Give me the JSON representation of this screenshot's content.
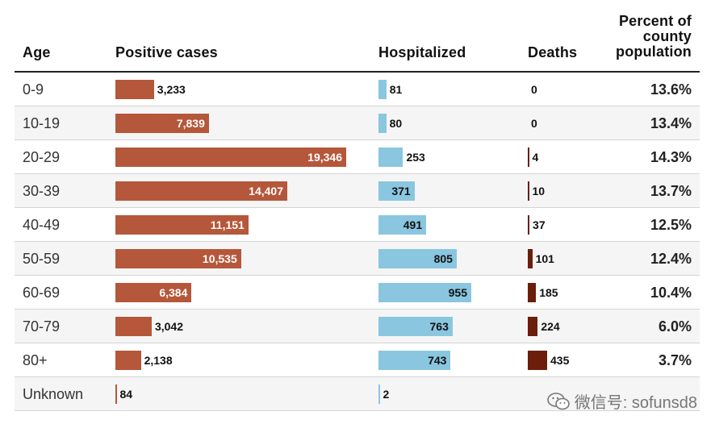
{
  "chart_data": {
    "type": "table",
    "columns": [
      "Age",
      "Positive cases",
      "Hospitalized",
      "Deaths",
      "Percent of county population"
    ],
    "header_pct_lines": [
      "Percent of",
      "county",
      "population"
    ],
    "rows": [
      {
        "age": "0-9",
        "cases": 3233,
        "cases_label": "3,233",
        "hosp": 81,
        "hosp_label": "81",
        "deaths": 0,
        "deaths_label": "0",
        "pct": "13.6%"
      },
      {
        "age": "10-19",
        "cases": 7839,
        "cases_label": "7,839",
        "hosp": 80,
        "hosp_label": "80",
        "deaths": 0,
        "deaths_label": "0",
        "pct": "13.4%"
      },
      {
        "age": "20-29",
        "cases": 19346,
        "cases_label": "19,346",
        "hosp": 253,
        "hosp_label": "253",
        "deaths": 4,
        "deaths_label": "4",
        "pct": "14.3%"
      },
      {
        "age": "30-39",
        "cases": 14407,
        "cases_label": "14,407",
        "hosp": 371,
        "hosp_label": "371",
        "deaths": 10,
        "deaths_label": "10",
        "pct": "13.7%"
      },
      {
        "age": "40-49",
        "cases": 11151,
        "cases_label": "11,151",
        "hosp": 491,
        "hosp_label": "491",
        "deaths": 37,
        "deaths_label": "37",
        "pct": "12.5%"
      },
      {
        "age": "50-59",
        "cases": 10535,
        "cases_label": "10,535",
        "hosp": 805,
        "hosp_label": "805",
        "deaths": 101,
        "deaths_label": "101",
        "pct": "12.4%"
      },
      {
        "age": "60-69",
        "cases": 6384,
        "cases_label": "6,384",
        "hosp": 955,
        "hosp_label": "955",
        "deaths": 185,
        "deaths_label": "185",
        "pct": "10.4%"
      },
      {
        "age": "70-79",
        "cases": 3042,
        "cases_label": "3,042",
        "hosp": 763,
        "hosp_label": "763",
        "deaths": 224,
        "deaths_label": "224",
        "pct": "6.0%"
      },
      {
        "age": "80+",
        "cases": 2138,
        "cases_label": "2,138",
        "hosp": 743,
        "hosp_label": "743",
        "deaths": 435,
        "deaths_label": "435",
        "pct": "3.7%"
      },
      {
        "age": "Unknown",
        "cases": 84,
        "cases_label": "84",
        "hosp": 2,
        "hosp_label": "2",
        "deaths": null,
        "deaths_label": "",
        "pct": ""
      }
    ],
    "colors": {
      "cases": "#b5573a",
      "hosp": "#8ac6e0",
      "deaths": "#6b1e0a"
    }
  },
  "watermark": {
    "text": "微信号: sofunsd8",
    "icon": "wechat-icon"
  }
}
